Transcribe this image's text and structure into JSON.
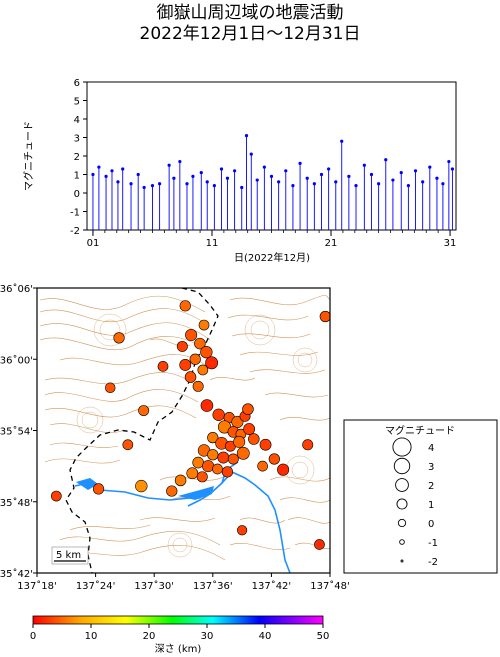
{
  "title_line1": "御嶽山周辺域の地震活動",
  "title_line2": "2022年12月1日〜12月31日",
  "colors": {
    "stem": "#0000ff",
    "marker": "#0000ff",
    "river": "#1e90ff",
    "contour": "#c8833a",
    "border": "#000000"
  },
  "chart_data": [
    {
      "type": "stem",
      "ylabel": "マグニチュード",
      "xlabel": "日(2022年12月)",
      "ylim": [
        -2,
        6
      ],
      "xlim": [
        0.5,
        31.5
      ],
      "yticks": [
        "-2",
        "-1",
        "0",
        "1",
        "2",
        "3",
        "4",
        "5",
        "6"
      ],
      "xticks": [
        "01",
        "11",
        "21",
        "31"
      ],
      "xtick_days": [
        1,
        11,
        21,
        31
      ],
      "series": [
        {
          "x": [
            1.0,
            1.5,
            2.1,
            2.6,
            3.1,
            3.5,
            4.2,
            4.8,
            5.3,
            6.0,
            6.6,
            7.4,
            7.8,
            8.3,
            8.9,
            9.4,
            10.1,
            10.6,
            11.2,
            11.8,
            12.3,
            12.9,
            13.5,
            13.9,
            14.3,
            14.8,
            15.4,
            16.0,
            16.6,
            17.2,
            17.8,
            18.4,
            19.0,
            19.6,
            20.2,
            20.8,
            21.4,
            21.9,
            22.5,
            23.1,
            23.8,
            24.4,
            25.0,
            25.6,
            26.2,
            26.9,
            27.5,
            28.1,
            28.7,
            29.3,
            29.9,
            30.4,
            30.9,
            31.2
          ],
          "y": [
            1.0,
            1.4,
            0.9,
            1.2,
            0.6,
            1.3,
            0.5,
            1.0,
            0.3,
            0.4,
            0.5,
            1.5,
            0.8,
            1.7,
            0.5,
            0.9,
            1.1,
            0.6,
            0.4,
            1.3,
            0.8,
            1.2,
            0.3,
            3.1,
            2.1,
            0.7,
            1.4,
            0.9,
            0.6,
            1.2,
            0.4,
            1.6,
            0.8,
            0.5,
            1.0,
            1.3,
            0.6,
            2.8,
            0.9,
            0.4,
            1.5,
            1.0,
            0.5,
            1.8,
            0.7,
            1.1,
            0.4,
            1.2,
            0.6,
            1.4,
            0.8,
            0.5,
            1.7,
            1.3
          ]
        }
      ]
    },
    {
      "type": "scatter",
      "subtype": "epicenter-map",
      "xlim": [
        137.3,
        137.8
      ],
      "ylim": [
        35.7,
        36.1
      ],
      "xticks": [
        "137˚18'",
        "137˚24'",
        "137˚30'",
        "137˚36'",
        "137˚42'",
        "137˚48'"
      ],
      "yticks": [
        "35˚42'",
        "35˚48'",
        "35˚54'",
        "36˚00'",
        "36˚06'"
      ],
      "scale_label": "5 km",
      "colorbar": {
        "label": "深さ (km)",
        "ticks": [
          "0",
          "10",
          "20",
          "30",
          "40",
          "50"
        ],
        "range": [
          0,
          50
        ]
      },
      "legend": {
        "title": "マグニチュード",
        "entries": [
          {
            "label": "4",
            "mag": 4
          },
          {
            "label": "3",
            "mag": 3
          },
          {
            "label": "2",
            "mag": 2
          },
          {
            "label": "1",
            "mag": 1
          },
          {
            "label": "0",
            "mag": 0
          },
          {
            "label": "-1",
            "mag": -1
          },
          {
            "label": "-2",
            "mag": -2
          }
        ]
      },
      "points": [
        [
          137.553,
          36.075,
          1.2,
          5
        ],
        [
          137.585,
          36.048,
          1.0,
          6
        ],
        [
          137.563,
          36.034,
          1.5,
          4
        ],
        [
          137.578,
          36.022,
          1.3,
          5
        ],
        [
          137.548,
          36.018,
          1.1,
          3
        ],
        [
          137.589,
          36.01,
          1.6,
          4
        ],
        [
          137.57,
          36.0,
          1.2,
          5
        ],
        [
          137.553,
          35.992,
          1.4,
          3
        ],
        [
          137.583,
          35.985,
          1.0,
          6
        ],
        [
          137.562,
          35.975,
          1.3,
          4
        ],
        [
          137.598,
          35.995,
          1.8,
          2
        ],
        [
          137.575,
          35.962,
          1.1,
          5
        ],
        [
          137.61,
          35.922,
          1.6,
          3
        ],
        [
          137.628,
          35.918,
          1.2,
          4
        ],
        [
          137.642,
          35.912,
          1.5,
          5
        ],
        [
          137.655,
          35.92,
          1.1,
          3
        ],
        [
          137.62,
          35.905,
          1.9,
          6
        ],
        [
          137.635,
          35.898,
          1.3,
          4
        ],
        [
          137.648,
          35.895,
          1.0,
          5
        ],
        [
          137.662,
          35.902,
          1.4,
          3
        ],
        [
          137.6,
          35.89,
          1.2,
          6
        ],
        [
          137.615,
          35.882,
          1.7,
          4
        ],
        [
          137.63,
          35.878,
          1.1,
          3
        ],
        [
          137.645,
          35.884,
          1.5,
          5
        ],
        [
          137.67,
          35.888,
          1.3,
          4
        ],
        [
          137.585,
          35.872,
          1.6,
          5
        ],
        [
          137.6,
          35.866,
          1.2,
          6
        ],
        [
          137.618,
          35.862,
          1.4,
          3
        ],
        [
          137.635,
          35.86,
          1.1,
          4
        ],
        [
          137.652,
          35.868,
          1.8,
          5
        ],
        [
          137.575,
          35.855,
          1.3,
          6
        ],
        [
          137.592,
          35.85,
          1.5,
          4
        ],
        [
          137.608,
          35.846,
          1.0,
          5
        ],
        [
          137.625,
          35.842,
          1.2,
          3
        ],
        [
          137.565,
          35.84,
          1.4,
          6
        ],
        [
          137.582,
          35.835,
          1.1,
          4
        ],
        [
          137.69,
          35.88,
          1.4,
          3
        ],
        [
          137.705,
          35.86,
          1.2,
          4
        ],
        [
          137.72,
          35.845,
          1.5,
          2
        ],
        [
          137.685,
          35.85,
          1.0,
          5
        ],
        [
          137.545,
          35.83,
          1.3,
          6
        ],
        [
          137.53,
          35.815,
          1.2,
          5
        ],
        [
          137.478,
          35.822,
          1.6,
          7
        ],
        [
          137.405,
          35.818,
          1.2,
          4
        ],
        [
          137.333,
          35.808,
          1.0,
          3
        ],
        [
          137.455,
          35.88,
          1.0,
          4
        ],
        [
          137.482,
          35.928,
          1.1,
          5
        ],
        [
          137.515,
          35.99,
          1.0,
          3
        ],
        [
          137.44,
          36.03,
          1.2,
          5
        ],
        [
          137.425,
          35.96,
          0.9,
          4
        ],
        [
          137.65,
          35.76,
          0.8,
          3
        ],
        [
          137.782,
          35.74,
          1.0,
          2
        ],
        [
          137.792,
          36.06,
          1.2,
          4
        ],
        [
          137.762,
          35.88,
          1.1,
          3
        ],
        [
          137.59,
          35.935,
          1.7,
          2
        ],
        [
          137.66,
          35.93,
          1.3,
          4
        ]
      ]
    }
  ]
}
